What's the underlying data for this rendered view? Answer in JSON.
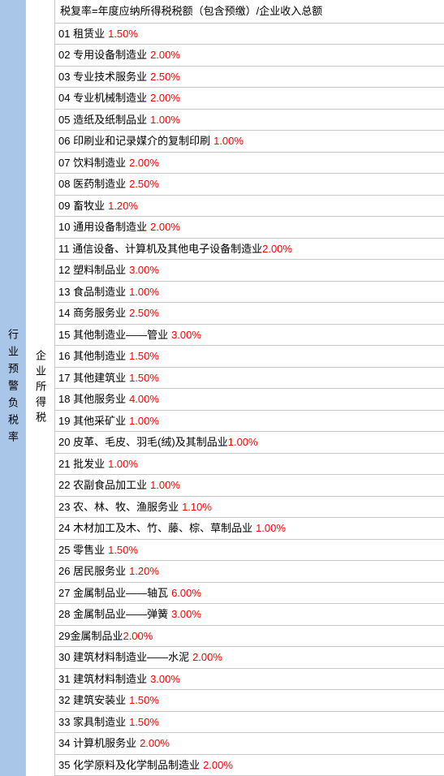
{
  "leftLabel": "行业预警负税率",
  "midLabel": "企业所得税",
  "header": "税复率=年度应纳所得税税额（包含预缴）/企业收入总额",
  "rows": [
    {
      "num": "01",
      "text": "租赁业",
      "pct": "1.50%",
      "space": true
    },
    {
      "num": "02",
      "text": "专用设备制造业",
      "pct": "2.00%",
      "space": true
    },
    {
      "num": "03",
      "text": "专业技术服务业",
      "pct": "2.50%",
      "space": true
    },
    {
      "num": "04",
      "text": "专业机械制造业",
      "pct": "2.00%",
      "space": true
    },
    {
      "num": "05",
      "text": "造纸及纸制品业",
      "pct": "1.00%",
      "space": true
    },
    {
      "num": "06",
      "text": "印刷业和记录媒介的复制印刷",
      "pct": "1.00%",
      "space": true
    },
    {
      "num": "07",
      "text": "饮料制造业",
      "pct": "2.00%",
      "space": true
    },
    {
      "num": "08",
      "text": "医药制造业",
      "pct": "2.50%",
      "space": true
    },
    {
      "num": "09",
      "text": "畜牧业",
      "pct": "1.20%",
      "space": true
    },
    {
      "num": "10",
      "text": "通用设备制造业",
      "pct": "2.00%",
      "space": true
    },
    {
      "num": "11",
      "text": "通信设备、计算机及其他电子设备制造业",
      "pct": "2.00%",
      "space": false
    },
    {
      "num": "12",
      "text": "塑料制品业",
      "pct": "3.00%",
      "space": true
    },
    {
      "num": "13",
      "text": "食品制造业",
      "pct": "1.00%",
      "space": true
    },
    {
      "num": "14",
      "text": "商务服务业",
      "pct": "2.50%",
      "space": true
    },
    {
      "num": "15",
      "text": "其他制造业——管业",
      "pct": "3.00%",
      "space": true
    },
    {
      "num": "16",
      "text": "其他制造业",
      "pct": "1.50%",
      "space": true
    },
    {
      "num": "17",
      "text": "其他建筑业",
      "pct": "1.50%",
      "space": true
    },
    {
      "num": "18",
      "text": "其他服务业",
      "pct": "4.00%",
      "space": true
    },
    {
      "num": "19",
      "text": "其他采矿业",
      "pct": "1.00%",
      "space": true
    },
    {
      "num": "20",
      "text": "皮革、毛皮、羽毛(绒)及其制品业",
      "pct": "1.00%",
      "space": false
    },
    {
      "num": "21",
      "text": "批发业",
      "pct": "1.00%",
      "space": true
    },
    {
      "num": "22",
      "text": "农副食品加工业",
      "pct": "1.00%",
      "space": true
    },
    {
      "num": "23",
      "text": "农、林、牧、渔服务业",
      "pct": "1.10%",
      "space": true
    },
    {
      "num": "24",
      "text": "木材加工及木、竹、藤、棕、草制品业",
      "pct": "1.00%",
      "space": true
    },
    {
      "num": "25",
      "text": "零售业",
      "pct": "1.50%",
      "space": true
    },
    {
      "num": "26",
      "text": "居民服务业",
      "pct": "1.20%",
      "space": true
    },
    {
      "num": "27",
      "text": "金属制品业——轴瓦",
      "pct": "6.00%",
      "space": true
    },
    {
      "num": "28",
      "text": "金属制品业——弹簧",
      "pct": "3.00%",
      "space": true
    },
    {
      "num": "29",
      "text": "金属制品业",
      "pct": "2.00%",
      "space": false,
      "nonumspace": true
    },
    {
      "num": "30",
      "text": "建筑材料制造业——水泥",
      "pct": "2.00%",
      "space": true
    },
    {
      "num": "31",
      "text": "建筑材料制造业",
      "pct": "3.00%",
      "space": true
    },
    {
      "num": "32",
      "text": "建筑安装业",
      "pct": "1.50%",
      "space": true
    },
    {
      "num": "33",
      "text": "家具制造业",
      "pct": "1.50%",
      "space": true
    },
    {
      "num": "34",
      "text": "计算机服务业",
      "pct": "2.00%",
      "space": true
    },
    {
      "num": "35",
      "text": "化学原料及化学制品制造业",
      "pct": "2.00%",
      "space": true
    }
  ],
  "colors": {
    "leftBg": "#a9c5e8",
    "border": "#c8c8c8",
    "pct": "#ff0000",
    "text": "#000000",
    "bg": "#ffffff"
  }
}
